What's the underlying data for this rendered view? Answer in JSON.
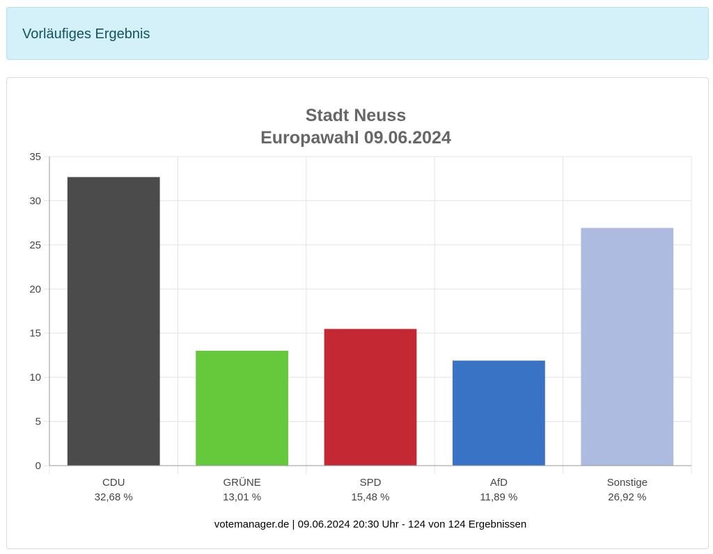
{
  "alert": {
    "text": "Vorläufiges Ergebnis"
  },
  "chart_data": {
    "type": "bar",
    "title": "Stadt Neuss",
    "subtitle": "Europawahl 09.06.2024",
    "categories": [
      "CDU",
      "GRÜNE",
      "SPD",
      "AfD",
      "Sonstige"
    ],
    "value_labels": [
      "32,68 %",
      "13,01 %",
      "15,48 %",
      "11,89 %",
      "26,92 %"
    ],
    "values": [
      32.68,
      13.01,
      15.48,
      11.89,
      26.92
    ],
    "colors": [
      "#4b4b4b",
      "#66c93c",
      "#c42832",
      "#3973c6",
      "#adbbe0"
    ],
    "ylim": [
      0,
      35
    ],
    "yticks": [
      0,
      5,
      10,
      15,
      20,
      25,
      30,
      35
    ],
    "grid": true,
    "legend": "none",
    "footer": "votemanager.de | 09.06.2024 20:30 Uhr - 124 von 124 Ergebnissen"
  }
}
